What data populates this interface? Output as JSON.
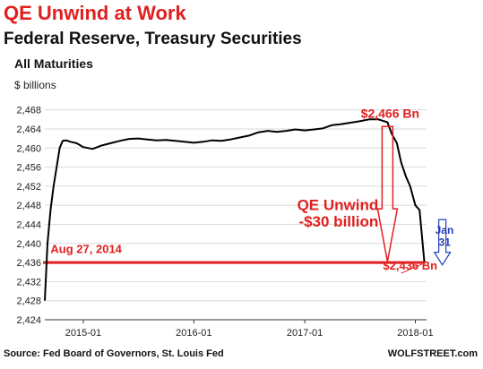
{
  "header": {
    "title": "QE Unwind at Work",
    "subtitle": "Federal Reserve, Treasury Securities",
    "subsubtitle": "All Maturities"
  },
  "footer": {
    "source": "Source: Fed Board of Governors, St. Louis Fed",
    "brand": "WOLFSTREET.com"
  },
  "colors": {
    "series": "#000000",
    "annotation": "#e0201f",
    "jan_annotation": "#2440b8",
    "grid": "#d9d9d9"
  },
  "chart_data": {
    "type": "line",
    "title": "QE Unwind at Work",
    "subtitle": "Federal Reserve, Treasury Securities",
    "ylabel": "$ billions",
    "grid": "horizontal",
    "ylim": [
      2424,
      2470
    ],
    "xlim": [
      "2014-08-27",
      "2018-02-07"
    ],
    "yticks": [
      2424,
      2428,
      2432,
      2436,
      2440,
      2444,
      2448,
      2452,
      2456,
      2460,
      2464,
      2468
    ],
    "ytick_labels": [
      "2,424",
      "2,428",
      "2,432",
      "2,436",
      "2,440",
      "2,444",
      "2,448",
      "2,452",
      "2,456",
      "2,460",
      "2,464",
      "2,468"
    ],
    "xticks": [
      "2015-01-01",
      "2016-01-01",
      "2017-01-01",
      "2018-01-01"
    ],
    "xtick_labels": [
      "2015-01",
      "2016-01",
      "2017-01",
      "2018-01"
    ],
    "series": [
      {
        "name": "",
        "x": [
          "2014-08-27",
          "2014-09-05",
          "2014-09-15",
          "2014-09-25",
          "2014-10-05",
          "2014-10-15",
          "2014-10-25",
          "2014-11-05",
          "2014-11-20",
          "2014-12-10",
          "2015-01-01",
          "2015-02-01",
          "2015-03-01",
          "2015-04-01",
          "2015-05-01",
          "2015-06-01",
          "2015-07-01",
          "2015-08-01",
          "2015-09-01",
          "2015-10-01",
          "2015-11-01",
          "2015-12-01",
          "2016-01-01",
          "2016-02-01",
          "2016-03-01",
          "2016-04-01",
          "2016-05-01",
          "2016-06-01",
          "2016-07-01",
          "2016-08-01",
          "2016-09-01",
          "2016-10-01",
          "2016-11-01",
          "2016-12-01",
          "2017-01-01",
          "2017-02-01",
          "2017-03-01",
          "2017-04-01",
          "2017-05-01",
          "2017-06-01",
          "2017-07-01",
          "2017-08-01",
          "2017-09-01",
          "2017-10-01",
          "2017-10-15",
          "2017-11-01",
          "2017-11-15",
          "2017-12-01",
          "2017-12-15",
          "2018-01-01",
          "2018-01-15",
          "2018-01-31"
        ],
        "values": [
          2428,
          2440,
          2447,
          2452,
          2456,
          2460,
          2461.5,
          2461.6,
          2461.3,
          2461.0,
          2460.2,
          2459.8,
          2460.5,
          2461.0,
          2461.5,
          2461.9,
          2462.0,
          2461.8,
          2461.6,
          2461.7,
          2461.5,
          2461.3,
          2461.1,
          2461.3,
          2461.6,
          2461.5,
          2461.8,
          2462.2,
          2462.6,
          2463.3,
          2463.6,
          2463.4,
          2463.6,
          2463.9,
          2463.7,
          2463.9,
          2464.1,
          2464.8,
          2465.0,
          2465.3,
          2465.6,
          2466.0,
          2466.0,
          2465.4,
          2463.0,
          2461.0,
          2457.0,
          2454.0,
          2452.0,
          2448.0,
          2447.0,
          2436.0
        ]
      }
    ],
    "annotations": [
      {
        "text": "$2,466 Bn",
        "x": "2017-10-01",
        "y": 2466
      },
      {
        "text": "QE Unwind",
        "x": "2017-09-01",
        "y": 2447
      },
      {
        "text": "-$30 billion",
        "x": "2017-09-01",
        "y": 2443.5
      },
      {
        "text": "Aug 27, 2014",
        "x": "2014-09-15",
        "y": 2438
      },
      {
        "text": "$2,436 Bn",
        "x": "2017-12-15",
        "y": 2434.5
      },
      {
        "text": "Jan",
        "x": "2018-01-31",
        "y": 2442
      },
      {
        "text": "31",
        "x": "2018-01-31",
        "y": 2439.5
      }
    ],
    "reference_line": {
      "value": 2436,
      "from": "2014-08-27",
      "to": "2018-01-31"
    }
  }
}
